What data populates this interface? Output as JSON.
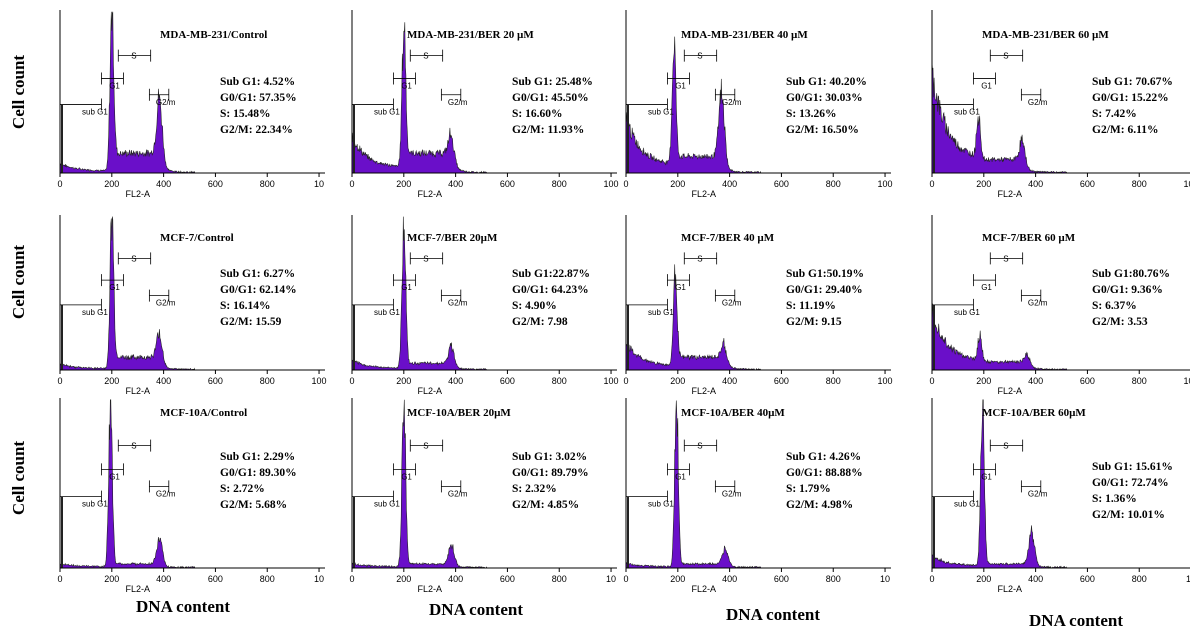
{
  "figure": {
    "y_label": "Cell count",
    "x_label": "DNA content",
    "colors": {
      "histogram": "#6a0fc9",
      "axis": "#000000"
    }
  },
  "chart_data": [
    {
      "type": "area",
      "title": "MDA-MB-231/Control",
      "xlabel": "FL2-A",
      "xticks": [
        "0",
        "200",
        "400",
        "600",
        "800",
        "10"
      ],
      "xlim": [
        0,
        1023
      ],
      "gates": [
        "sub G1",
        "G1",
        "S",
        "G2/m"
      ],
      "stats": [
        "Sub G1: 4.52%",
        "G0/G1: 57.35%",
        "S: 15.48%",
        "G2/M: 22.34%"
      ],
      "peaks": {
        "g1": 200,
        "g1h": 1.0,
        "g2": 385,
        "g2h": 0.38,
        "sub": 0.05,
        "s": 0.12,
        "floor": 8
      }
    },
    {
      "type": "area",
      "title": "MDA-MB-231/BER 20 µM",
      "xlabel": "FL2-A",
      "xticks": [
        "0",
        "200",
        "400",
        "600",
        "800",
        "100"
      ],
      "xlim": [
        0,
        1023
      ],
      "gates": [
        "sub G1",
        "G1",
        "S",
        "G2/m"
      ],
      "stats": [
        "Sub G1: 25.48%",
        "G0/G1: 45.50%",
        "S: 16.60%",
        "G2/M: 11.93%"
      ],
      "peaks": {
        "g1": 200,
        "g1h": 0.88,
        "g2": 385,
        "g2h": 0.15,
        "sub": 0.2,
        "s": 0.12,
        "floor": 8
      }
    },
    {
      "type": "area",
      "title": "MDA-MB-231/BER 40 µM",
      "xlabel": "FL2-A",
      "xticks": [
        "0",
        "200",
        "400",
        "600",
        "800",
        "100"
      ],
      "xlim": [
        0,
        1023
      ],
      "gates": [
        "sub G1",
        "G1",
        "S",
        "G2/m"
      ],
      "stats": [
        "Sub G1: 40.20%",
        "G0/G1: 30.03%",
        "S: 13.26%",
        "G2/M: 16.50%"
      ],
      "peaks": {
        "g1": 185,
        "g1h": 0.78,
        "g2": 370,
        "g2h": 0.42,
        "sub": 0.3,
        "s": 0.1,
        "floor": 8
      }
    },
    {
      "type": "area",
      "title": "MDA-MB-231/BER 60 µM",
      "xlabel": "FL2-A",
      "xticks": [
        "0",
        "200",
        "400",
        "600",
        "800",
        "100"
      ],
      "xlim": [
        0,
        1023
      ],
      "gates": [
        "sub G1",
        "G1",
        "S",
        "G2/m"
      ],
      "stats": [
        "Sub G1: 70.67%",
        "G0/G1: 15.22%",
        "S: 7.42%",
        "G2/M: 6.11%"
      ],
      "peaks": {
        "g1": 180,
        "g1h": 0.32,
        "g2": 350,
        "g2h": 0.14,
        "sub": 0.55,
        "s": 0.08,
        "floor": 8
      }
    },
    {
      "type": "area",
      "title": "MCF-7/Control",
      "xlabel": "FL2-A",
      "xticks": [
        "0",
        "200",
        "400",
        "600",
        "800",
        "100"
      ],
      "xlim": [
        0,
        1023
      ],
      "gates": [
        "sub G1",
        "G1",
        "S",
        "G2/m"
      ],
      "stats": [
        "Sub G1: 6.27%",
        "G0/G1: 62.14%",
        "S: 16.14%",
        "G2/M: 15.59"
      ],
      "peaks": {
        "g1": 200,
        "g1h": 1.0,
        "g2": 385,
        "g2h": 0.18,
        "sub": 0.03,
        "s": 0.08,
        "floor": 8
      }
    },
    {
      "type": "area",
      "title": "MCF-7/BER 20µM",
      "xlabel": "FL2-A",
      "xticks": [
        "0",
        "200",
        "400",
        "600",
        "800",
        "100"
      ],
      "xlim": [
        0,
        1023
      ],
      "gates": [
        "sub G1",
        "G1",
        "S",
        "G2/m"
      ],
      "stats": [
        "Sub G1:22.87%",
        "G0/G1: 64.23%",
        "S: 4.90%",
        "G2/M: 7.98"
      ],
      "peaks": {
        "g1": 200,
        "g1h": 1.0,
        "g2": 385,
        "g2h": 0.12,
        "sub": 0.05,
        "s": 0.04,
        "floor": 8
      }
    },
    {
      "type": "area",
      "title": "MCF-7/BER 40 µM",
      "xlabel": "FL2-A",
      "xticks": [
        "0",
        "200",
        "400",
        "600",
        "800",
        "100"
      ],
      "xlim": [
        0,
        1023
      ],
      "gates": [
        "sub G1",
        "G1",
        "S",
        "G2/m"
      ],
      "stats": [
        "Sub G1:50.19%",
        "G0/G1: 29.40%",
        "S: 11.19%",
        "G2/M: 9.15"
      ],
      "peaks": {
        "g1": 190,
        "g1h": 0.62,
        "g2": 380,
        "g2h": 0.1,
        "sub": 0.15,
        "s": 0.08,
        "floor": 8
      }
    },
    {
      "type": "area",
      "title": "MCF-7/BER 60 µM",
      "xlabel": "FL2-A",
      "xticks": [
        "0",
        "200",
        "400",
        "600",
        "800",
        "100"
      ],
      "xlim": [
        0,
        1023
      ],
      "gates": [
        "sub G1",
        "G1",
        "S",
        "G2/m"
      ],
      "stats": [
        "Sub G1:80.76%",
        "G0/G1: 9.36%",
        "S: 6.37%",
        "G2/M: 3.53"
      ],
      "peaks": {
        "g1": 185,
        "g1h": 0.2,
        "g2": 370,
        "g2h": 0.06,
        "sub": 0.35,
        "s": 0.05,
        "floor": 8
      }
    },
    {
      "type": "area",
      "title": "MCF-10A/Control",
      "xlabel": "FL2-A",
      "xticks": [
        "0",
        "200",
        "400",
        "600",
        "800",
        "10"
      ],
      "xlim": [
        0,
        1023
      ],
      "gates": [
        "sub G1",
        "G1",
        "S",
        "G2/m"
      ],
      "stats": [
        "Sub G1: 2.29%",
        "G0/G1: 89.30%",
        "S: 2.72%",
        "G2/M: 5.68%"
      ],
      "peaks": {
        "g1": 195,
        "g1h": 1.0,
        "g2": 385,
        "g2h": 0.15,
        "sub": 0.02,
        "s": 0.02,
        "floor": 6
      }
    },
    {
      "type": "area",
      "title": "MCF-10A/BER 20µM",
      "xlabel": "FL2-A",
      "xticks": [
        "0",
        "200",
        "400",
        "600",
        "800",
        "10"
      ],
      "xlim": [
        0,
        1023
      ],
      "gates": [
        "sub G1",
        "G1",
        "S",
        "G2/m"
      ],
      "stats": [
        "Sub G1: 3.02%",
        "G0/G1: 89.79%",
        "S: 2.32%",
        "G2/M: 4.85%"
      ],
      "peaks": {
        "g1": 200,
        "g1h": 1.0,
        "g2": 385,
        "g2h": 0.12,
        "sub": 0.02,
        "s": 0.02,
        "floor": 6
      }
    },
    {
      "type": "area",
      "title": "MCF-10A/BER 40µM",
      "xlabel": "FL2-A",
      "xticks": [
        "0",
        "200",
        "400",
        "600",
        "800",
        "10"
      ],
      "xlim": [
        0,
        1023
      ],
      "gates": [
        "sub G1",
        "G1",
        "S",
        "G2/m"
      ],
      "stats": [
        "Sub G1: 4.26%",
        "G0/G1: 88.88%",
        "S: 1.79%",
        "G2/M: 4.98%"
      ],
      "peaks": {
        "g1": 195,
        "g1h": 1.0,
        "g2": 385,
        "g2h": 0.1,
        "sub": 0.02,
        "s": 0.02,
        "floor": 6
      }
    },
    {
      "type": "area",
      "title": "MCF-10A/BER 60µM",
      "xlabel": "FL2-A",
      "xticks": [
        "0",
        "200",
        "400",
        "600",
        "800",
        "10"
      ],
      "xlim": [
        0,
        1023
      ],
      "gates": [
        "sub G1",
        "G1",
        "S",
        "G2/m"
      ],
      "stats": [
        "Sub G1: 15.61%",
        "G0/G1: 72.74%",
        "S: 1.36%",
        "G2/M: 10.01%"
      ],
      "peaks": {
        "g1": 195,
        "g1h": 1.0,
        "g2": 385,
        "g2h": 0.2,
        "sub": 0.06,
        "s": 0.02,
        "floor": 6
      }
    }
  ]
}
